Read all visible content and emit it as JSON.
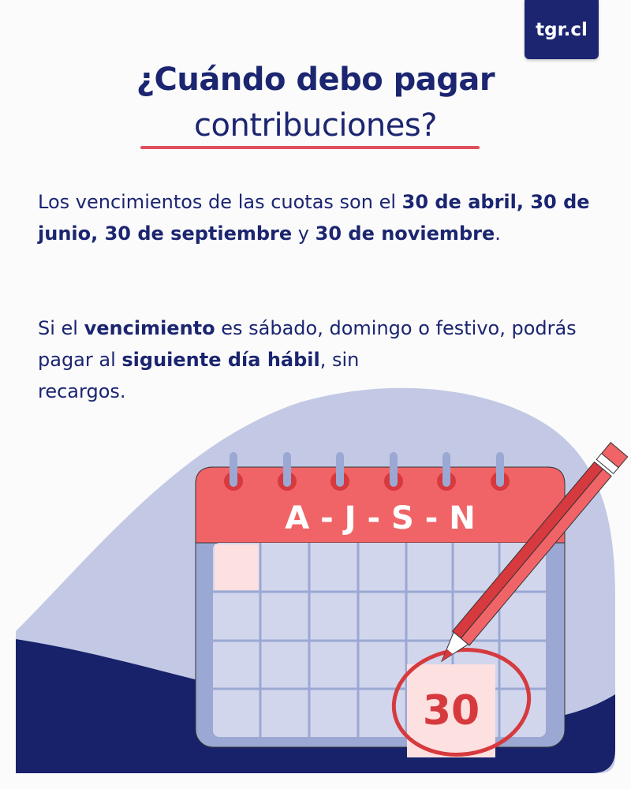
{
  "brand": {
    "label": "tgr.cl"
  },
  "title": {
    "line1": "¿Cuándo debo pagar",
    "line2": "contribuciones?"
  },
  "paragraph1": {
    "t1": "Los vencimientos de las cuotas son el ",
    "b1": "30 de abril, 30 de junio, 30 de septiembre",
    "t2": " y ",
    "b2": "30 de noviembre",
    "t3": "."
  },
  "paragraph2": {
    "t1": "Si el ",
    "b1": "vencimiento",
    "t2": " es sábado, domingo o festivo, podrás pagar al ",
    "b2": "siguiente día hábil",
    "t3": ", sin",
    "t4": "recargos."
  },
  "calendar": {
    "months": "A - J - S - N",
    "day": "30"
  },
  "colors": {
    "navy": "#1b2570",
    "red": "#f06467",
    "dark_red": "#d63a3e",
    "lavender": "#c3c9e4",
    "cell": "#d1d6ec",
    "frame": "#9ba8d3",
    "pink": "#fde0e0"
  }
}
